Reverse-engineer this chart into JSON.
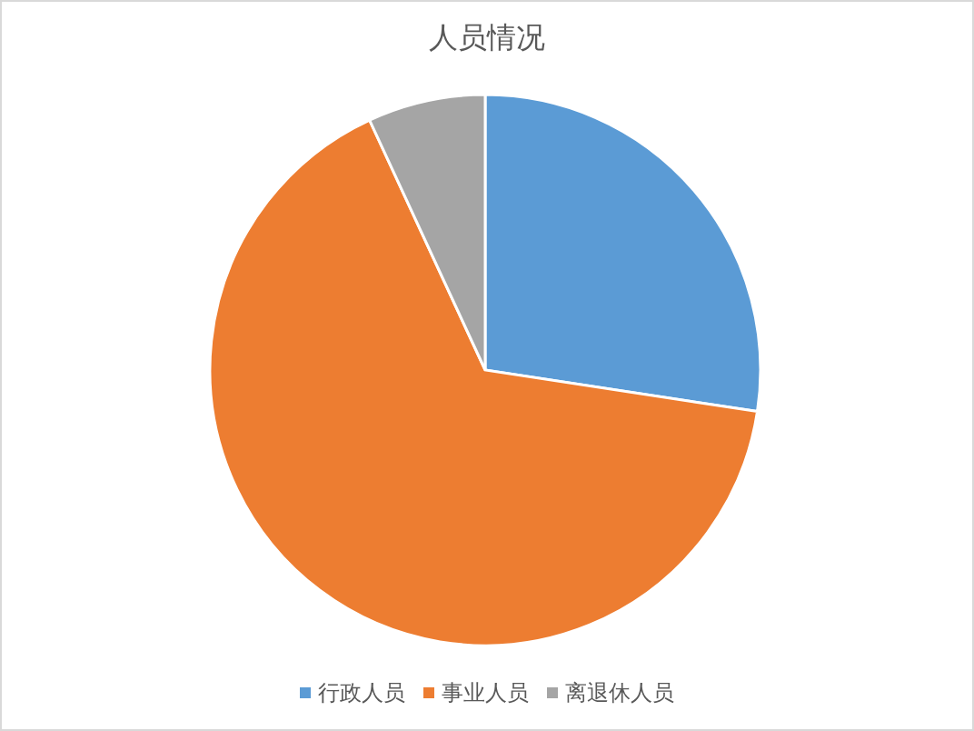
{
  "chart_data": {
    "type": "pie",
    "title": "人员情况",
    "categories": [
      "行政人员",
      "事业人员",
      "离退休人员"
    ],
    "values": [
      27.4,
      65.7,
      6.9
    ],
    "colors": [
      "#5b9bd5",
      "#ed7d31",
      "#a5a5a5"
    ],
    "legend": "bottom"
  }
}
